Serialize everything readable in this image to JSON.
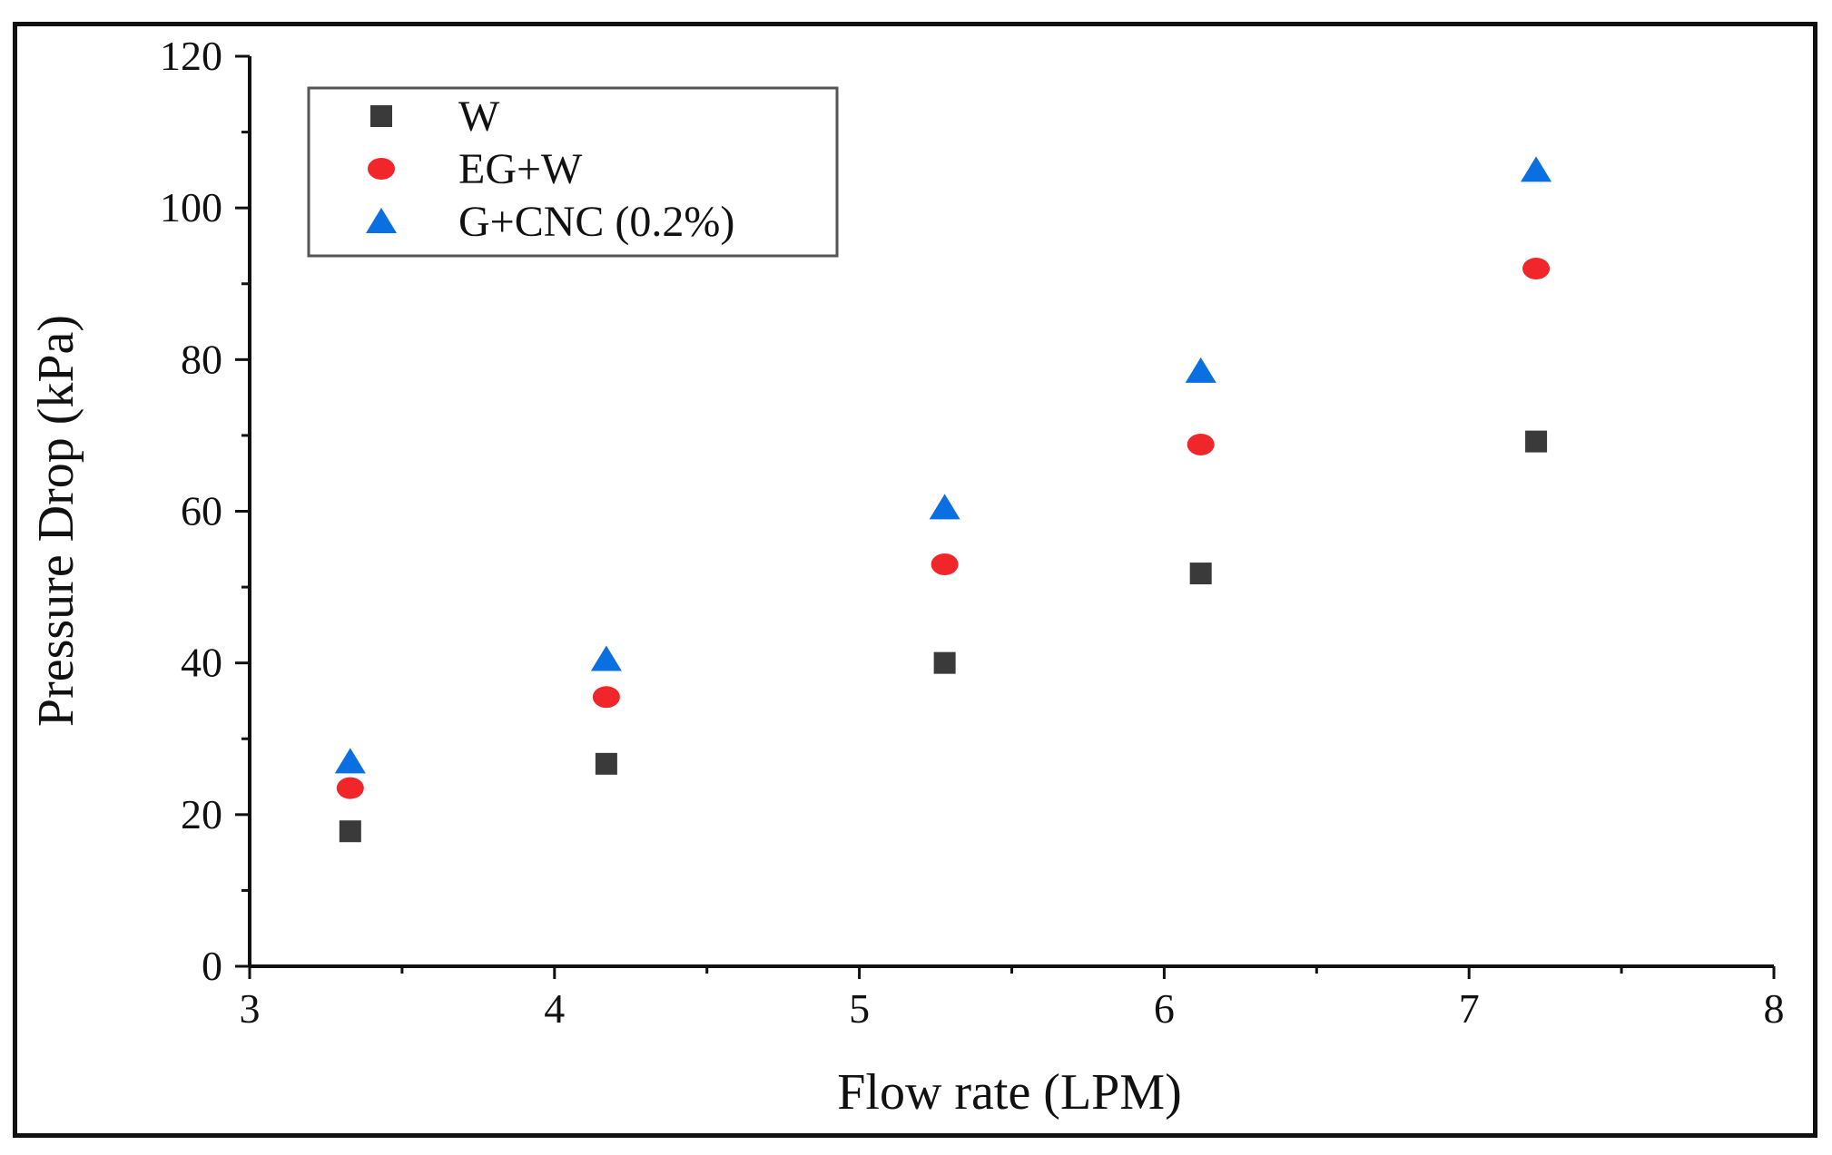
{
  "chart_data": {
    "type": "scatter",
    "title": "",
    "xlabel": "Flow rate (LPM)",
    "ylabel": "Pressure Drop (kPa)",
    "xlim": [
      3,
      8
    ],
    "ylim": [
      0,
      120
    ],
    "xticks": [
      3,
      4,
      5,
      6,
      7,
      8
    ],
    "yticks": [
      0,
      20,
      40,
      60,
      80,
      100,
      120
    ],
    "grid": false,
    "legend_position": "top-left",
    "series": [
      {
        "name": "W",
        "marker": "square",
        "color": "#3a3a3a",
        "x": [
          3.33,
          4.17,
          5.28,
          6.12,
          7.22
        ],
        "y": [
          17.8,
          26.7,
          40.0,
          51.8,
          69.2
        ]
      },
      {
        "name": "EG+W",
        "marker": "circle",
        "color": "#f0262b",
        "x": [
          3.33,
          4.17,
          5.28,
          6.12,
          7.22
        ],
        "y": [
          23.5,
          35.5,
          53.0,
          68.8,
          92.0
        ]
      },
      {
        "name": "G+CNC (0.2%)",
        "marker": "triangle",
        "color": "#0a6fe0",
        "x": [
          3.33,
          4.17,
          5.28,
          6.12,
          7.22
        ],
        "y": [
          27.0,
          40.5,
          60.5,
          78.5,
          105.0
        ]
      }
    ]
  }
}
